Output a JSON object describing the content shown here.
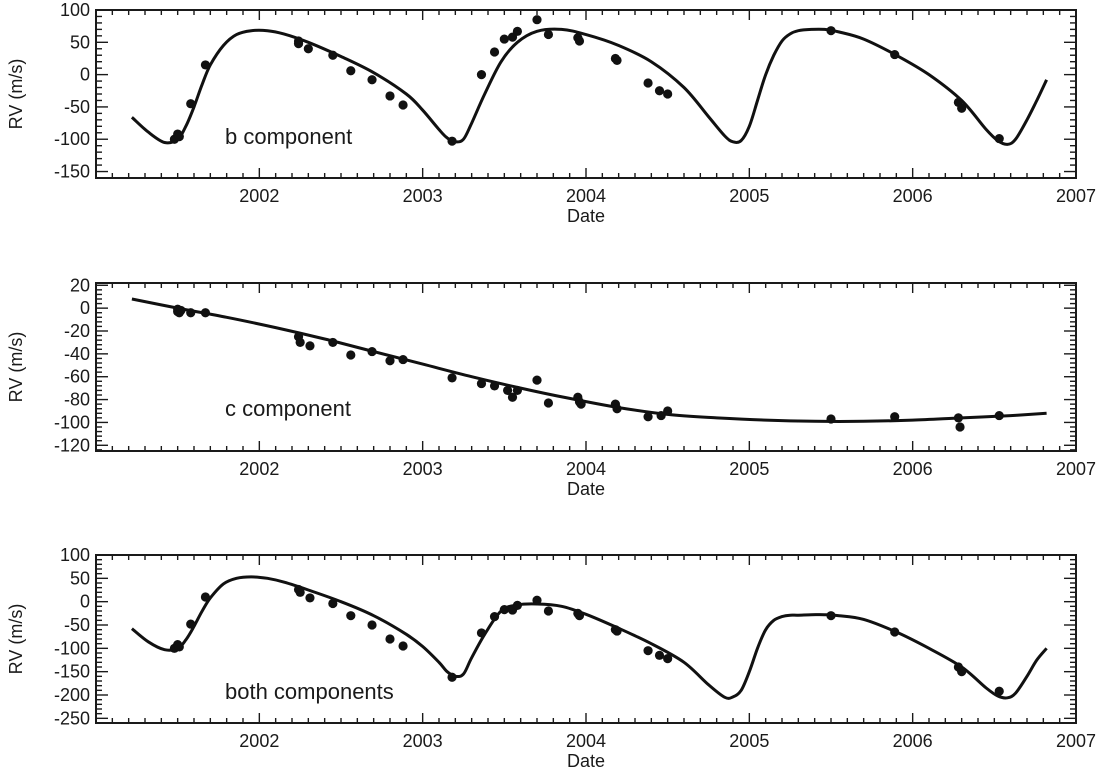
{
  "chart_data": [
    {
      "type": "scatter",
      "panel": "b",
      "annotation": "b component",
      "xlabel": "Date",
      "ylabel": "RV (m/s)",
      "xlim": [
        2001.0,
        2007.0
      ],
      "ylim": [
        -160,
        100
      ],
      "xticks": [
        2002,
        2003,
        2004,
        2005,
        2006,
        2007
      ],
      "yticks": [
        -150,
        -100,
        -50,
        0,
        50,
        100
      ],
      "fit": {
        "x": [
          2001.22,
          2001.32,
          2001.42,
          2001.5,
          2001.55,
          2001.6,
          2001.65,
          2001.7,
          2001.78,
          2001.86,
          2001.95,
          2002.05,
          2002.15,
          2002.3,
          2002.5,
          2002.7,
          2002.9,
          2003.0,
          2003.1,
          2003.15,
          2003.2,
          2003.25,
          2003.3,
          2003.38,
          2003.48,
          2003.58,
          2003.7,
          2003.85,
          2004.0,
          2004.2,
          2004.4,
          2004.6,
          2004.75,
          2004.85,
          2004.9,
          2004.95,
          2005.0,
          2005.05,
          2005.1,
          2005.15,
          2005.2,
          2005.25,
          2005.3,
          2005.38,
          2005.46,
          2005.55,
          2005.7,
          2005.9,
          2006.1,
          2006.3,
          2006.45,
          2006.52,
          2006.58,
          2006.63,
          2006.7,
          2006.76,
          2006.82
        ],
        "y": [
          -66,
          -89,
          -105,
          -100,
          -80,
          -50,
          -15,
          15,
          45,
          62,
          68,
          68,
          63,
          50,
          28,
          3,
          -30,
          -55,
          -85,
          -98,
          -104,
          -100,
          -75,
          -30,
          20,
          50,
          67,
          70,
          62,
          45,
          20,
          -20,
          -65,
          -95,
          -104,
          -102,
          -80,
          -40,
          0,
          30,
          52,
          63,
          68,
          70,
          70,
          66,
          55,
          30,
          0,
          -40,
          -85,
          -102,
          -108,
          -100,
          -70,
          -40,
          -8
        ]
      },
      "points": [
        {
          "x": 2001.48,
          "y": -100
        },
        {
          "x": 2001.5,
          "y": -92
        },
        {
          "x": 2001.51,
          "y": -96
        },
        {
          "x": 2001.58,
          "y": -45
        },
        {
          "x": 2001.67,
          "y": 15
        },
        {
          "x": 2002.24,
          "y": 52
        },
        {
          "x": 2002.24,
          "y": 48
        },
        {
          "x": 2002.3,
          "y": 40
        },
        {
          "x": 2002.45,
          "y": 30
        },
        {
          "x": 2002.56,
          "y": 6
        },
        {
          "x": 2002.69,
          "y": -8
        },
        {
          "x": 2002.8,
          "y": -33
        },
        {
          "x": 2002.88,
          "y": -47
        },
        {
          "x": 2003.18,
          "y": -103
        },
        {
          "x": 2003.36,
          "y": 0
        },
        {
          "x": 2003.44,
          "y": 35
        },
        {
          "x": 2003.5,
          "y": 55
        },
        {
          "x": 2003.55,
          "y": 58
        },
        {
          "x": 2003.58,
          "y": 67
        },
        {
          "x": 2003.7,
          "y": 85
        },
        {
          "x": 2003.77,
          "y": 62
        },
        {
          "x": 2003.95,
          "y": 57
        },
        {
          "x": 2003.96,
          "y": 52
        },
        {
          "x": 2004.18,
          "y": 25
        },
        {
          "x": 2004.19,
          "y": 22
        },
        {
          "x": 2004.38,
          "y": -13
        },
        {
          "x": 2004.45,
          "y": -25
        },
        {
          "x": 2004.5,
          "y": -30
        },
        {
          "x": 2005.5,
          "y": 68
        },
        {
          "x": 2005.89,
          "y": 31
        },
        {
          "x": 2006.28,
          "y": -43
        },
        {
          "x": 2006.3,
          "y": -52
        },
        {
          "x": 2006.53,
          "y": -99
        }
      ]
    },
    {
      "type": "scatter",
      "panel": "c",
      "annotation": "c component",
      "xlabel": "Date",
      "ylabel": "RV (m/s)",
      "xlim": [
        2001.0,
        2007.0
      ],
      "ylim": [
        -125,
        22
      ],
      "xticks": [
        2002,
        2003,
        2004,
        2005,
        2006,
        2007
      ],
      "yticks": [
        -120,
        -100,
        -80,
        -60,
        -40,
        -20,
        0,
        20
      ],
      "fit": {
        "x": [
          2001.22,
          2001.5,
          2001.8,
          2002.1,
          2002.4,
          2002.7,
          2003.0,
          2003.3,
          2003.6,
          2003.9,
          2004.2,
          2004.5,
          2004.8,
          2005.1,
          2005.4,
          2005.7,
          2006.0,
          2006.3,
          2006.6,
          2006.82
        ],
        "y": [
          8,
          0,
          -8,
          -17,
          -27,
          -38,
          -49,
          -60,
          -70,
          -79,
          -87,
          -93,
          -96,
          -98,
          -99,
          -99,
          -98,
          -96,
          -94,
          -92
        ]
      },
      "points": [
        {
          "x": 2001.5,
          "y": -1
        },
        {
          "x": 2001.5,
          "y": -3
        },
        {
          "x": 2001.51,
          "y": -4
        },
        {
          "x": 2001.52,
          "y": -2
        },
        {
          "x": 2001.58,
          "y": -4
        },
        {
          "x": 2001.67,
          "y": -4
        },
        {
          "x": 2002.24,
          "y": -25
        },
        {
          "x": 2002.25,
          "y": -30
        },
        {
          "x": 2002.31,
          "y": -33
        },
        {
          "x": 2002.45,
          "y": -30
        },
        {
          "x": 2002.56,
          "y": -41
        },
        {
          "x": 2002.69,
          "y": -38
        },
        {
          "x": 2002.8,
          "y": -46
        },
        {
          "x": 2002.88,
          "y": -45
        },
        {
          "x": 2003.18,
          "y": -61
        },
        {
          "x": 2003.36,
          "y": -66
        },
        {
          "x": 2003.44,
          "y": -68
        },
        {
          "x": 2003.52,
          "y": -72
        },
        {
          "x": 2003.55,
          "y": -78
        },
        {
          "x": 2003.58,
          "y": -72
        },
        {
          "x": 2003.7,
          "y": -63
        },
        {
          "x": 2003.77,
          "y": -83
        },
        {
          "x": 2003.95,
          "y": -78
        },
        {
          "x": 2003.96,
          "y": -82
        },
        {
          "x": 2003.97,
          "y": -84
        },
        {
          "x": 2004.18,
          "y": -84
        },
        {
          "x": 2004.19,
          "y": -88
        },
        {
          "x": 2004.38,
          "y": -95
        },
        {
          "x": 2004.46,
          "y": -94
        },
        {
          "x": 2004.5,
          "y": -90
        },
        {
          "x": 2005.5,
          "y": -97
        },
        {
          "x": 2005.89,
          "y": -95
        },
        {
          "x": 2006.28,
          "y": -96
        },
        {
          "x": 2006.29,
          "y": -104
        },
        {
          "x": 2006.53,
          "y": -94
        }
      ]
    },
    {
      "type": "scatter",
      "panel": "both",
      "annotation": "both components",
      "xlabel": "Date",
      "ylabel": "RV (m/s)",
      "xlim": [
        2001.0,
        2007.0
      ],
      "ylim": [
        -260,
        100
      ],
      "xticks": [
        2002,
        2003,
        2004,
        2005,
        2006,
        2007
      ],
      "yticks": [
        -250,
        -200,
        -150,
        -100,
        -50,
        0,
        50,
        100
      ],
      "fit": {
        "x": [
          2001.22,
          2001.32,
          2001.42,
          2001.5,
          2001.55,
          2001.6,
          2001.65,
          2001.7,
          2001.78,
          2001.86,
          2001.95,
          2002.05,
          2002.15,
          2002.3,
          2002.5,
          2002.7,
          2002.9,
          2003.0,
          2003.1,
          2003.15,
          2003.2,
          2003.25,
          2003.3,
          2003.38,
          2003.48,
          2003.58,
          2003.7,
          2003.85,
          2004.0,
          2004.2,
          2004.4,
          2004.6,
          2004.75,
          2004.85,
          2004.9,
          2004.95,
          2005.0,
          2005.05,
          2005.1,
          2005.15,
          2005.2,
          2005.25,
          2005.3,
          2005.38,
          2005.46,
          2005.55,
          2005.7,
          2005.9,
          2006.1,
          2006.3,
          2006.45,
          2006.52,
          2006.58,
          2006.63,
          2006.7,
          2006.76,
          2006.82
        ],
        "y": [
          -58,
          -86,
          -103,
          -100,
          -82,
          -53,
          -20,
          8,
          38,
          50,
          53,
          50,
          42,
          25,
          0,
          -30,
          -70,
          -96,
          -130,
          -150,
          -160,
          -155,
          -120,
          -70,
          -20,
          -7,
          -5,
          -10,
          -27,
          -57,
          -90,
          -130,
          -178,
          -205,
          -204,
          -190,
          -150,
          -100,
          -60,
          -40,
          -32,
          -29,
          -29,
          -28,
          -28,
          -30,
          -38,
          -65,
          -100,
          -140,
          -185,
          -202,
          -206,
          -196,
          -160,
          -125,
          -100
        ]
      },
      "points": [
        {
          "x": 2001.48,
          "y": -100
        },
        {
          "x": 2001.5,
          "y": -92
        },
        {
          "x": 2001.51,
          "y": -97
        },
        {
          "x": 2001.58,
          "y": -48
        },
        {
          "x": 2001.67,
          "y": 10
        },
        {
          "x": 2002.24,
          "y": 26
        },
        {
          "x": 2002.25,
          "y": 20
        },
        {
          "x": 2002.31,
          "y": 8
        },
        {
          "x": 2002.45,
          "y": -4
        },
        {
          "x": 2002.56,
          "y": -30
        },
        {
          "x": 2002.69,
          "y": -50
        },
        {
          "x": 2002.8,
          "y": -80
        },
        {
          "x": 2002.88,
          "y": -95
        },
        {
          "x": 2003.18,
          "y": -162
        },
        {
          "x": 2003.36,
          "y": -67
        },
        {
          "x": 2003.44,
          "y": -32
        },
        {
          "x": 2003.5,
          "y": -17
        },
        {
          "x": 2003.55,
          "y": -18
        },
        {
          "x": 2003.58,
          "y": -8
        },
        {
          "x": 2003.7,
          "y": 3
        },
        {
          "x": 2003.77,
          "y": -20
        },
        {
          "x": 2003.95,
          "y": -25
        },
        {
          "x": 2003.96,
          "y": -30
        },
        {
          "x": 2004.18,
          "y": -60
        },
        {
          "x": 2004.19,
          "y": -63
        },
        {
          "x": 2004.38,
          "y": -105
        },
        {
          "x": 2004.45,
          "y": -115
        },
        {
          "x": 2004.5,
          "y": -122
        },
        {
          "x": 2005.5,
          "y": -30
        },
        {
          "x": 2005.89,
          "y": -65
        },
        {
          "x": 2006.28,
          "y": -140
        },
        {
          "x": 2006.3,
          "y": -150
        },
        {
          "x": 2006.53,
          "y": -192
        }
      ]
    }
  ]
}
